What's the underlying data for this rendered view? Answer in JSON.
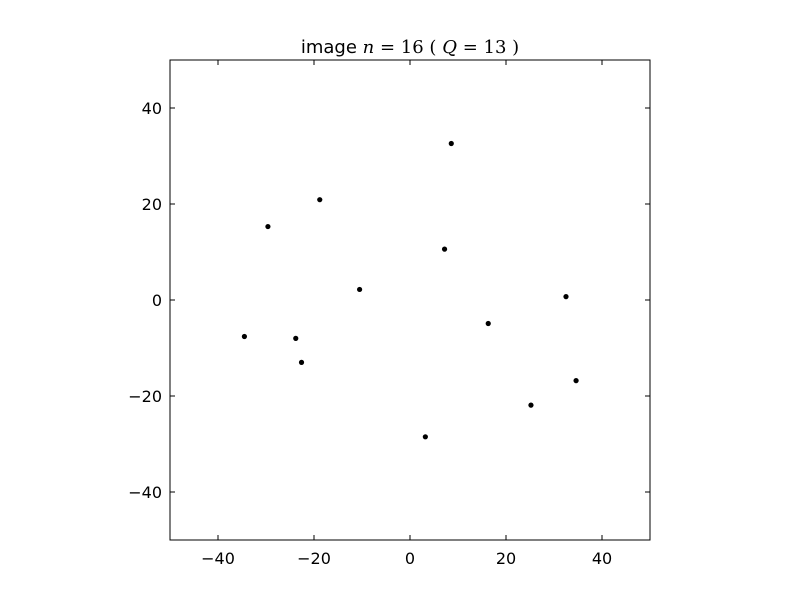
{
  "chart_data": {
    "type": "scatter",
    "title": "image n = 16 (Q = 13)",
    "title_parts": {
      "prefix": "image",
      "n_symbol": "n",
      "n_value": "16",
      "q_symbol": "Q",
      "q_value": "13"
    },
    "xlabel": "",
    "ylabel": "",
    "xlim": [
      -50,
      50
    ],
    "ylim": [
      -50,
      50
    ],
    "xticks": [
      -40,
      -20,
      0,
      20,
      40
    ],
    "yticks": [
      -40,
      -20,
      0,
      20,
      40
    ],
    "xtick_labels": [
      "−40",
      "−20",
      "0",
      "20",
      "40"
    ],
    "ytick_labels": [
      "−40",
      "−20",
      "0",
      "20",
      "40"
    ],
    "grid": false,
    "marker_color": "#000000",
    "points": [
      {
        "x": 8.6,
        "y": 32.6
      },
      {
        "x": -18.8,
        "y": 20.9
      },
      {
        "x": -29.6,
        "y": 15.3
      },
      {
        "x": 7.2,
        "y": 10.6
      },
      {
        "x": -10.5,
        "y": 2.2
      },
      {
        "x": 32.5,
        "y": 0.7
      },
      {
        "x": 16.3,
        "y": -4.9
      },
      {
        "x": -34.5,
        "y": -7.6
      },
      {
        "x": -23.8,
        "y": -8.0
      },
      {
        "x": -22.6,
        "y": -13.0
      },
      {
        "x": 34.6,
        "y": -16.8
      },
      {
        "x": 25.2,
        "y": -21.9
      },
      {
        "x": 3.2,
        "y": -28.5
      }
    ]
  }
}
